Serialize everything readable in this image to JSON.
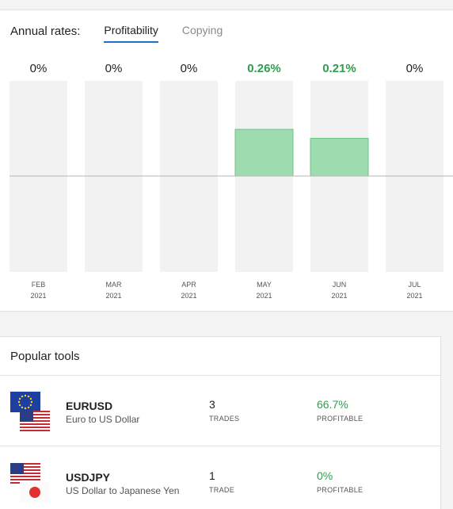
{
  "rates": {
    "title": "Annual rates:",
    "tabs": [
      {
        "label": "Profitability",
        "active": true
      },
      {
        "label": "Copying",
        "active": false
      }
    ]
  },
  "chart_data": {
    "type": "bar",
    "categories": [
      "FEB 2021",
      "MAR 2021",
      "APR 2021",
      "MAY 2021",
      "JUN 2021",
      "JUL 2021"
    ],
    "months": [
      "FEB",
      "MAR",
      "APR",
      "MAY",
      "JUN",
      "JUL"
    ],
    "years": [
      "2021",
      "2021",
      "2021",
      "2021",
      "2021",
      "2021"
    ],
    "values": [
      0,
      0,
      0,
      0.26,
      0.21,
      0
    ],
    "value_labels": [
      "0%",
      "0%",
      "0%",
      "0.26%",
      "0.21%",
      "0%"
    ],
    "unit": "%",
    "ylim": [
      -0.53,
      0.53
    ],
    "colors": {
      "positive_bar": "#9edcb0",
      "positive_bar_border": "#6cc487",
      "positive_text": "#2e9e4d",
      "neutral_text": "#222222",
      "track": "#f2f2f3",
      "tick_text": "#555555",
      "baseline": "#b5b5b5"
    }
  },
  "tools": {
    "title": "Popular tools",
    "items": [
      {
        "symbol": "EURUSD",
        "description": "Euro to US Dollar",
        "trades": "3",
        "trades_label": "TRADES",
        "profit": "66.7%",
        "profit_label": "PROFITABLE",
        "flags": [
          "eu-flag-icon",
          "us-flag-icon"
        ]
      },
      {
        "symbol": "USDJPY",
        "description": "US Dollar to Japanese Yen",
        "trades": "1",
        "trades_label": "TRADE",
        "profit": "0%",
        "profit_label": "PROFITABLE",
        "flags": [
          "us-flag-icon",
          "jp-flag-icon"
        ]
      }
    ]
  }
}
